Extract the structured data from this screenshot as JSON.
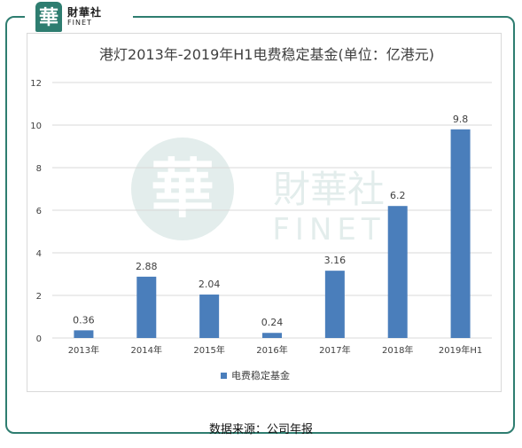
{
  "logo": {
    "cn": "財華社",
    "en": "FINET",
    "mark": "華"
  },
  "watermark": {
    "mark": "華",
    "cn": "財華社",
    "en": "FINET"
  },
  "chart_data": {
    "type": "bar",
    "title": "港灯2013年-2019年H1电费稳定基金(单位：亿港元)",
    "categories": [
      "2013年",
      "2014年",
      "2015年",
      "2016年",
      "2017年",
      "2018年",
      "2019年H1"
    ],
    "series": [
      {
        "name": "电费稳定基金",
        "values": [
          0.36,
          2.88,
          2.04,
          0.24,
          3.16,
          6.2,
          9.8
        ]
      }
    ],
    "data_labels": [
      "0.36",
      "2.88",
      "2.04",
      "0.24",
      "3.16",
      "6.2",
      "9.8"
    ],
    "y_ticks": [
      "0",
      "2",
      "4",
      "6",
      "8",
      "10",
      "12"
    ],
    "ylim": [
      0,
      12
    ],
    "xlabel": "",
    "ylabel": "",
    "grid": true,
    "legend": "bottom-center",
    "bar_color": "#4a7ebb"
  },
  "source": "数据来源：公司年报"
}
